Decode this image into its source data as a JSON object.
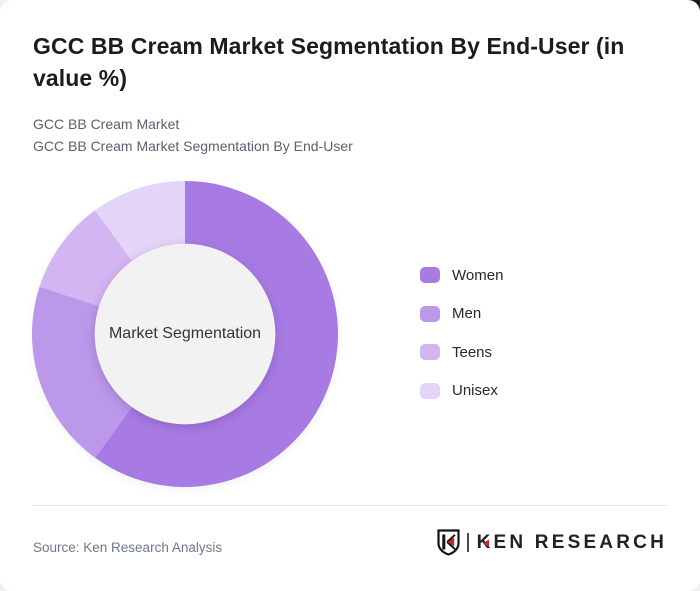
{
  "header": {
    "title": "GCC BB Cream Market Segmentation By End-User (in value %)",
    "subtitle_line1": "GCC BB Cream Market",
    "subtitle_line2": "GCC BB Cream Market Segmentation By End-User"
  },
  "chart_data": {
    "type": "pie",
    "variant": "donut",
    "title": "GCC BB Cream Market Segmentation By End-User (in value %)",
    "center_label": "Market Segmentation",
    "categories": [
      "Women",
      "Men",
      "Teens",
      "Unisex"
    ],
    "values": [
      60,
      20,
      10,
      10
    ],
    "unit": "value %",
    "colors": [
      "#a87ae3",
      "#bc98ea",
      "#d3b5f2",
      "#e4d4f8"
    ],
    "center_fill": "#f2f2f3",
    "start_angle_deg": 0,
    "direction": "clockwise",
    "legend_position": "right",
    "inner_radius_ratio": 0.59
  },
  "footer": {
    "source_text": "Source: Ken Research Analysis",
    "brand": "KEN RESEARCH"
  }
}
